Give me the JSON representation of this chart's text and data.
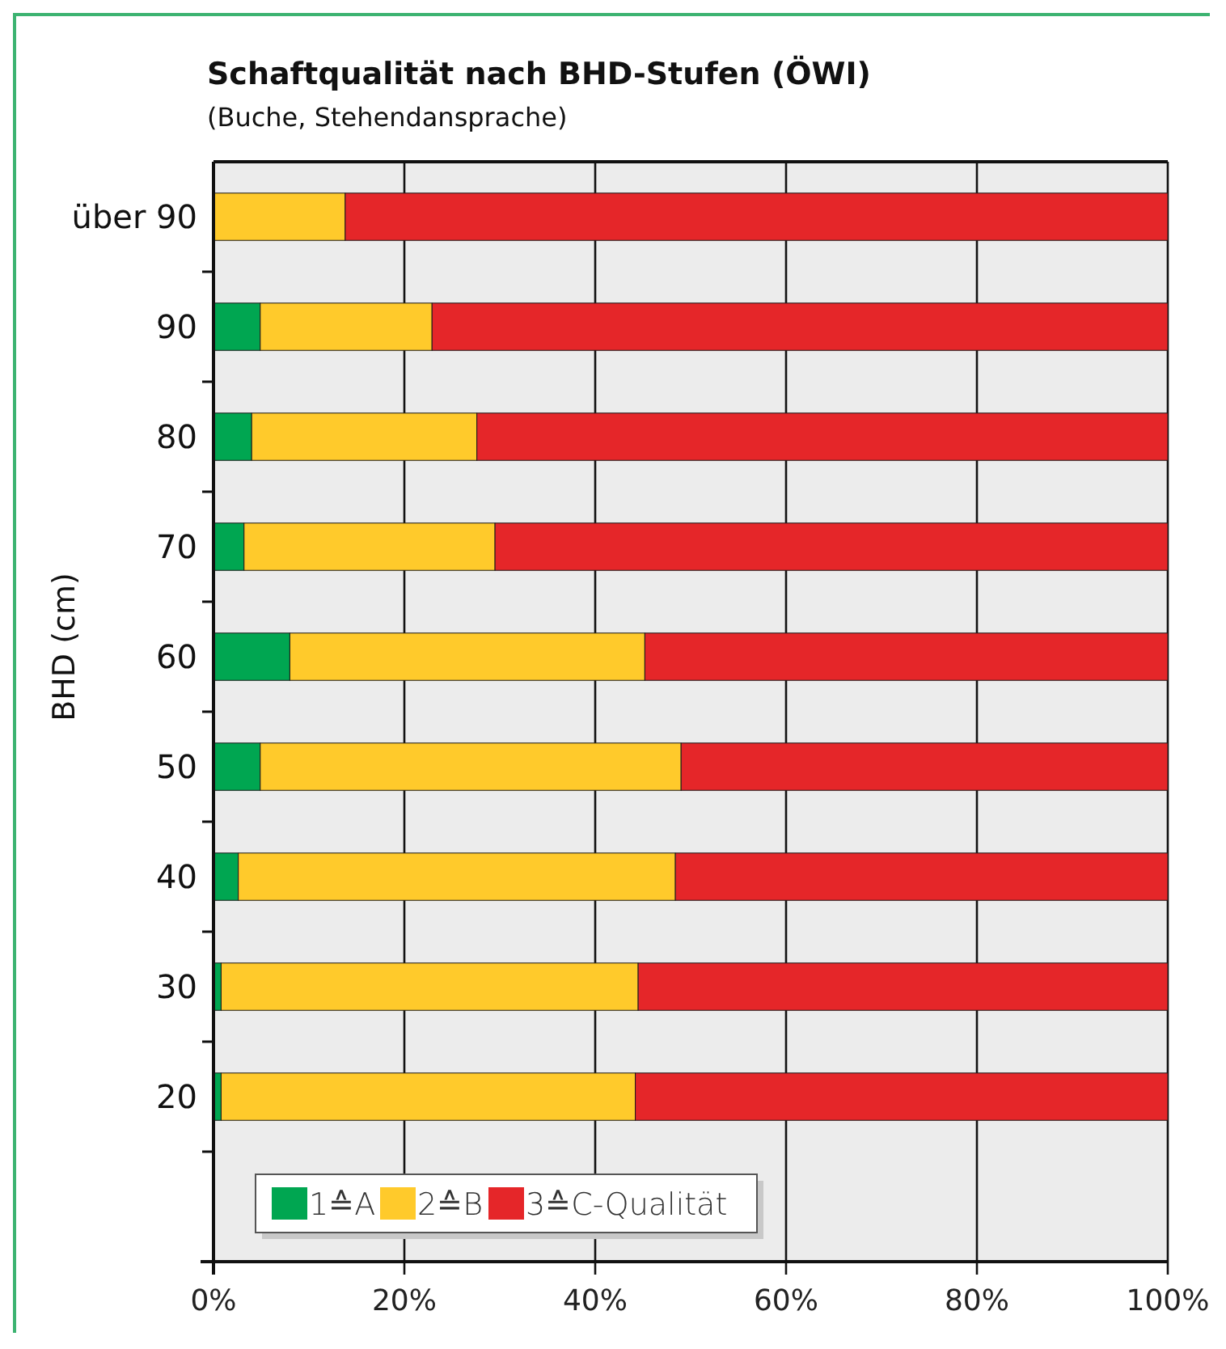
{
  "chart_data": {
    "type": "bar",
    "orientation": "horizontal",
    "stacked": true,
    "title": "Schaftqualität nach BHD-Stufen (ÖWI)",
    "subtitle": "(Buche, Stehendansprache)",
    "ylabel": "BHD (cm)",
    "categories": [
      "über 90",
      "90",
      "80",
      "70",
      "60",
      "50",
      "40",
      "30",
      "20"
    ],
    "series": [
      {
        "name": "1≙A",
        "color": "#00a651",
        "values": [
          0,
          4.9,
          4.0,
          3.2,
          8.0,
          4.9,
          2.6,
          0.8,
          0.8
        ]
      },
      {
        "name": "2≙B",
        "color": "#ffca2b",
        "values": [
          13.8,
          18.0,
          23.6,
          26.3,
          37.2,
          44.1,
          45.8,
          43.7,
          43.4
        ]
      },
      {
        "name": "3≙C-Qualität",
        "color": "#e52629",
        "values": [
          86.2,
          77.1,
          72.4,
          70.5,
          54.8,
          51.0,
          51.6,
          55.5,
          55.8
        ]
      }
    ],
    "xlim": [
      0,
      100
    ],
    "xticks": [
      {
        "value": 0,
        "label": "0%"
      },
      {
        "value": 20,
        "label": "20%"
      },
      {
        "value": 40,
        "label": "40%"
      },
      {
        "value": 60,
        "label": "60%"
      },
      {
        "value": 80,
        "label": "80%"
      },
      {
        "value": 100,
        "label": "100%"
      }
    ],
    "grid": "x",
    "legend": "bottom left"
  }
}
